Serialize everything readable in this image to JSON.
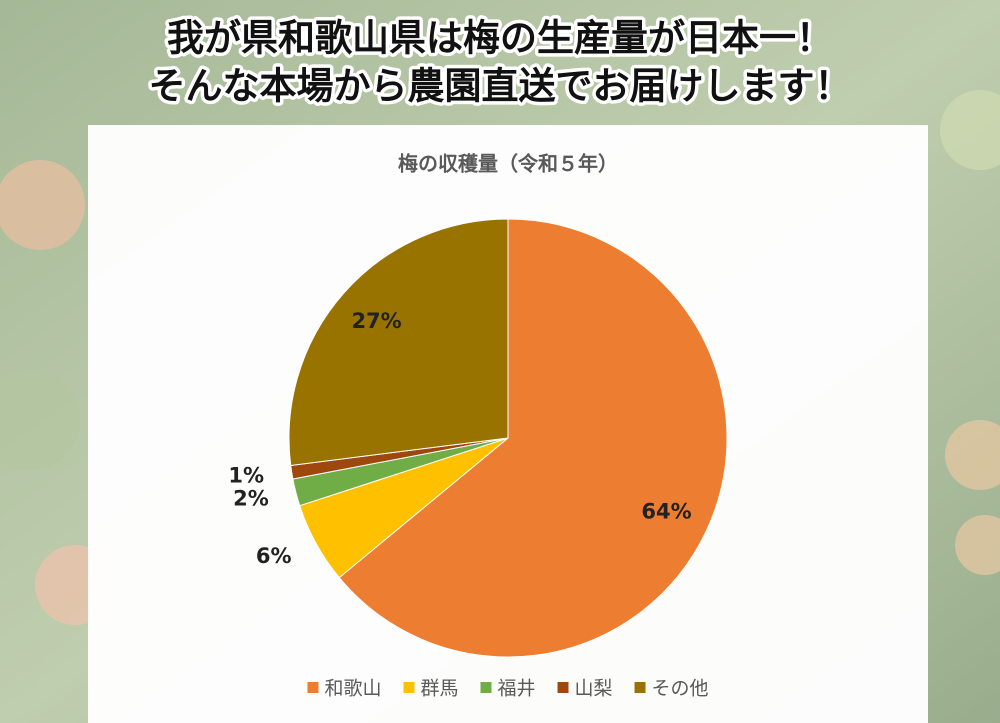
{
  "header": {
    "line1": "我が県和歌山県は梅の生産量が日本一！",
    "line2": "そんな本場から農園直送でお届けします！"
  },
  "chart_data": {
    "type": "pie",
    "title": "梅の収穫量（令和５年）",
    "categories": [
      "和歌山",
      "群馬",
      "福井",
      "山梨",
      "その他"
    ],
    "values": [
      64,
      6,
      2,
      1,
      27
    ],
    "value_labels": [
      "64%",
      "6%",
      "2%",
      "1%",
      "27%"
    ],
    "colors": [
      "#ed7d31",
      "#ffc000",
      "#70ad47",
      "#9e480e",
      "#997300"
    ],
    "legend": "bottom"
  }
}
